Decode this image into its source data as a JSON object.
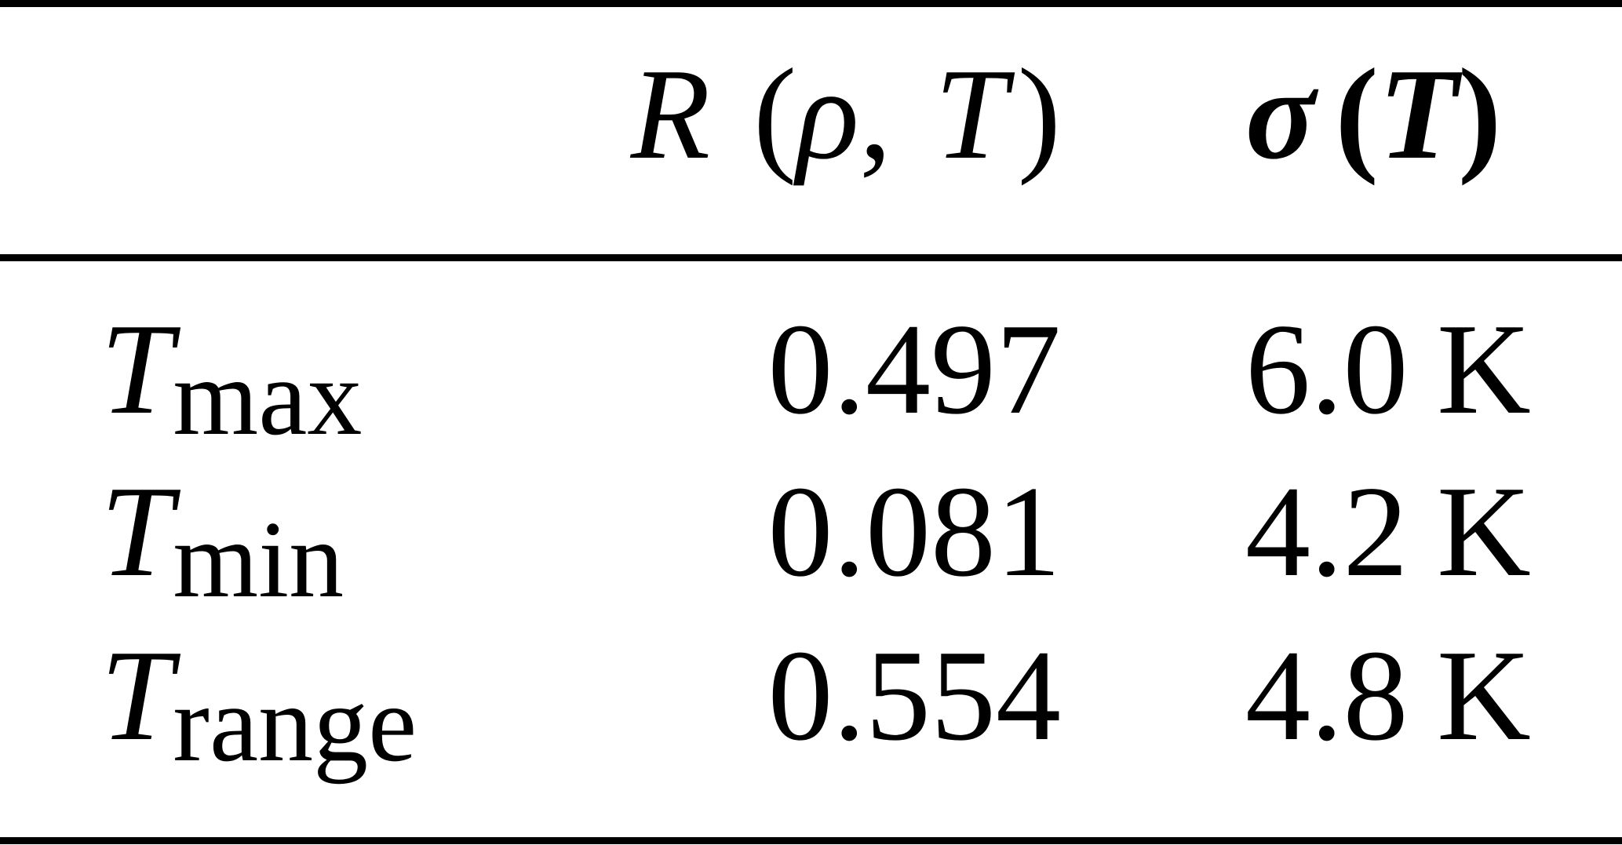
{
  "table": {
    "header": {
      "r_col": {
        "var": "R",
        "open": "(",
        "arg1": "ρ",
        "comma": ",",
        "arg2": "T",
        "close": ")"
      },
      "sigma_col": {
        "var": "σ",
        "open": "(",
        "arg": "T",
        "close": ")"
      }
    },
    "rows": [
      {
        "symbol": "T",
        "subscript": "max",
        "r_value": "0.497",
        "sigma_value": "6.0",
        "sigma_unit": "K"
      },
      {
        "symbol": "T",
        "subscript": "min",
        "r_value": "0.081",
        "sigma_value": "4.2",
        "sigma_unit": "K"
      },
      {
        "symbol": "T",
        "subscript": "range",
        "r_value": "0.554",
        "sigma_value": "4.8",
        "sigma_unit": "K"
      }
    ]
  },
  "chart_data": {
    "type": "table",
    "columns": [
      "",
      "R (ρ, T)",
      "σ (T)"
    ],
    "rows": [
      [
        "T_max",
        0.497,
        "6.0 K"
      ],
      [
        "T_min",
        0.081,
        "4.2 K"
      ],
      [
        "T_range",
        0.554,
        "4.8 K"
      ]
    ]
  }
}
